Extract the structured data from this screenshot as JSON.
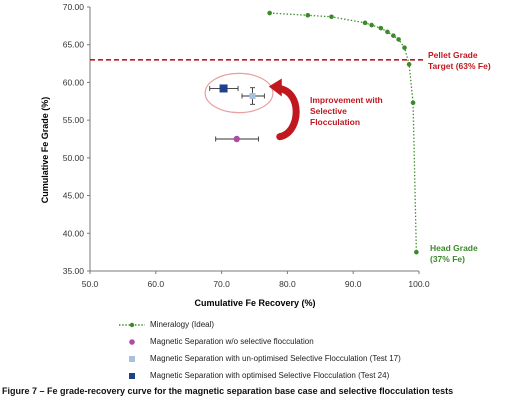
{
  "chart_data": {
    "type": "scatter",
    "xlabel": "Cumulative Fe Recovery (%)",
    "ylabel": "Cumulative Fe Grade (%)",
    "xlim": [
      50.0,
      100.0
    ],
    "ylim": [
      35.0,
      70.0
    ],
    "xticks": [
      "50.0",
      "60.0",
      "70.0",
      "80.0",
      "90.0",
      "100.0"
    ],
    "yticks": [
      "35.00",
      "40.00",
      "45.00",
      "50.00",
      "55.00",
      "60.00",
      "65.00",
      "70.00"
    ],
    "grid": false,
    "series": [
      {
        "name": "Mineralogy (Ideal)",
        "kind": "dotted-line",
        "color": "#3a8a2a",
        "points": [
          [
            77.3,
            69.2
          ],
          [
            83.1,
            68.9
          ],
          [
            86.7,
            68.7
          ],
          [
            91.8,
            67.9
          ],
          [
            92.8,
            67.6
          ],
          [
            94.2,
            67.2
          ],
          [
            95.2,
            66.7
          ],
          [
            96.1,
            66.2
          ],
          [
            96.9,
            65.7
          ],
          [
            97.8,
            64.6
          ],
          [
            98.5,
            62.4
          ],
          [
            99.1,
            57.3
          ],
          [
            99.6,
            37.5
          ]
        ]
      },
      {
        "name": "Magnetic Separation w/o selective flocculation",
        "kind": "marker",
        "marker": "circle",
        "color": "#b04aa6",
        "points": [
          [
            72.3,
            52.5
          ]
        ],
        "xerr": [
          [
            69.1,
            75.6
          ]
        ]
      },
      {
        "name": "Magnetic Separation with un-optimised Selective Flocculation (Test 17)",
        "kind": "marker",
        "marker": "square",
        "color": "#a8bfe0",
        "points": [
          [
            74.7,
            58.2
          ]
        ],
        "xerr": [
          [
            73.1,
            76.5
          ]
        ],
        "yerr": [
          [
            57.1,
            59.3
          ]
        ]
      },
      {
        "name": "Magnetic Separation with optimised Selective Flocculation (Test 24)",
        "kind": "marker",
        "marker": "square",
        "color": "#1f3f8f",
        "points": [
          [
            70.3,
            59.2
          ]
        ],
        "xerr": [
          [
            68.2,
            72.5
          ]
        ]
      }
    ],
    "reference_line": {
      "y": 63.0,
      "color": "#c0181f",
      "style": "dashed"
    },
    "annotations": {
      "pellet_target": [
        "Pellet Grade",
        "Target (63% Fe)"
      ],
      "improvement": [
        "Improvement with",
        "Selective",
        "Flocculation"
      ],
      "head_grade": [
        "Head Grade",
        "(37% Fe)"
      ]
    },
    "highlight_ellipse_color": "#e8a0a0",
    "improvement_arrow_color": "#c0181f"
  },
  "caption": "Figure 7 – Fe grade-recovery curve for the magnetic separation base case and selective flocculation tests"
}
